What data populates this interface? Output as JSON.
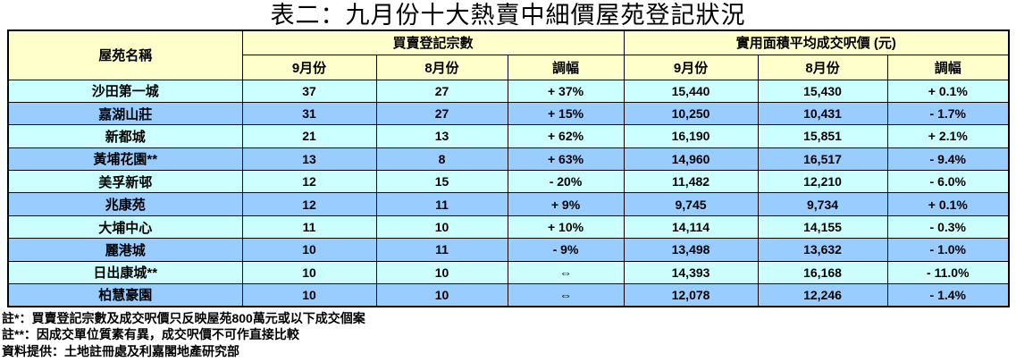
{
  "title": "表二：九月份十大熱賣中細價屋苑登記狀況",
  "table": {
    "col_headers": {
      "estate": "屋苑名稱",
      "registrations_group": "買賣登記宗數",
      "price_group": "實用面積平均成交呎價 (元)",
      "reg": {
        "sep": "9月份",
        "aug": "8月份",
        "change": "調幅"
      },
      "price": {
        "sep": "9月份",
        "aug": "8月份",
        "change": "調幅"
      }
    },
    "rows": [
      {
        "estate": "沙田第一城",
        "reg_sep": "37",
        "reg_aug": "27",
        "reg_change": "+ 37%",
        "price_sep": "15,440",
        "price_aug": "15,430",
        "price_change": "+ 0.1%"
      },
      {
        "estate": "嘉湖山莊",
        "reg_sep": "31",
        "reg_aug": "27",
        "reg_change": "+ 15%",
        "price_sep": "10,250",
        "price_aug": "10,431",
        "price_change": "- 1.7%"
      },
      {
        "estate": "新都城",
        "reg_sep": "21",
        "reg_aug": "13",
        "reg_change": "+ 62%",
        "price_sep": "16,190",
        "price_aug": "15,851",
        "price_change": "+ 2.1%"
      },
      {
        "estate": "黃埔花園**",
        "reg_sep": "13",
        "reg_aug": "8",
        "reg_change": "+ 63%",
        "price_sep": "14,960",
        "price_aug": "16,517",
        "price_change": "- 9.4%"
      },
      {
        "estate": "美孚新邨",
        "reg_sep": "12",
        "reg_aug": "15",
        "reg_change": "- 20%",
        "price_sep": "11,482",
        "price_aug": "12,210",
        "price_change": "- 6.0%"
      },
      {
        "estate": "兆康苑",
        "reg_sep": "12",
        "reg_aug": "11",
        "reg_change": "+ 9%",
        "price_sep": "9,745",
        "price_aug": "9,734",
        "price_change": "+ 0.1%"
      },
      {
        "estate": "大埔中心",
        "reg_sep": "11",
        "reg_aug": "10",
        "reg_change": "+ 10%",
        "price_sep": "14,114",
        "price_aug": "14,155",
        "price_change": "- 0.3%"
      },
      {
        "estate": "麗港城",
        "reg_sep": "10",
        "reg_aug": "11",
        "reg_change": "- 9%",
        "price_sep": "13,498",
        "price_aug": "13,632",
        "price_change": "- 1.0%"
      },
      {
        "estate": "日出康城**",
        "reg_sep": "10",
        "reg_aug": "10",
        "reg_change": "⇔",
        "price_sep": "14,393",
        "price_aug": "16,168",
        "price_change": "- 11.0%"
      },
      {
        "estate": "柏慧豪園",
        "reg_sep": "10",
        "reg_aug": "10",
        "reg_change": "⇔",
        "price_sep": "12,078",
        "price_aug": "12,246",
        "price_change": "- 1.4%"
      }
    ]
  },
  "footnotes": [
    "註*：買賣登記宗數及成交呎價只反映屋苑800萬元或以下成交個案",
    "註**：因成交單位質素有異，成交呎價不可作直接比較",
    "資料提供：土地註冊處及利嘉閣地產研究部"
  ],
  "colors": {
    "header_bg": "#FFFFCC",
    "row_odd": "#CCFFFF",
    "row_even": "#99CCFF",
    "border": "#000000",
    "text": "#000000"
  }
}
